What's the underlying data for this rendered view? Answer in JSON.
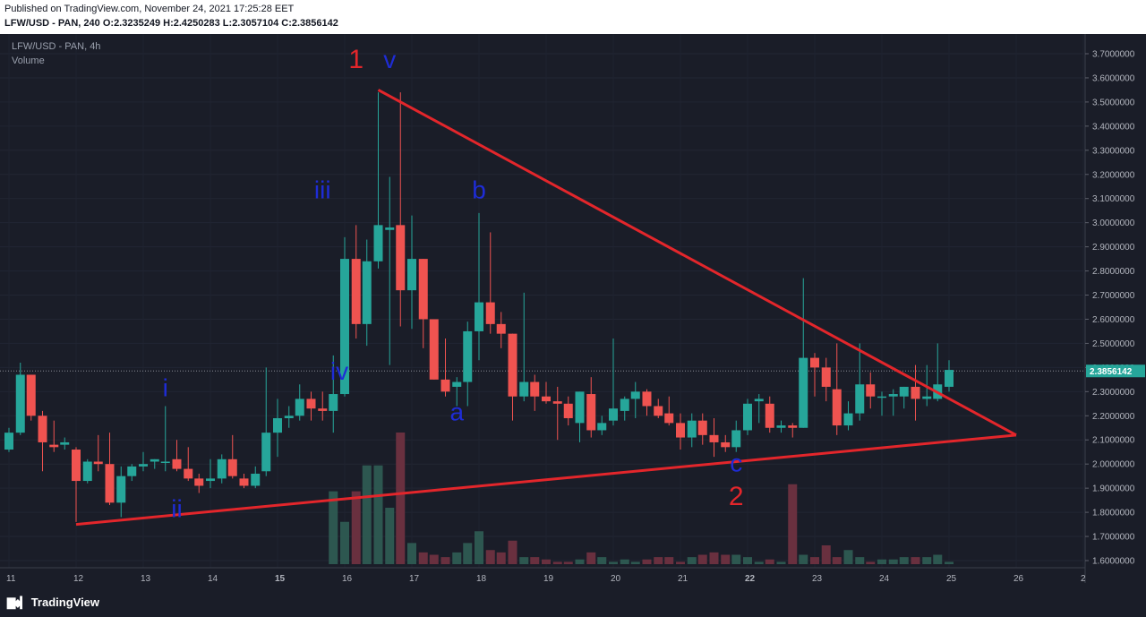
{
  "header": {
    "published": "Published on TradingView.com, November 24, 2021 17:25:28 EET",
    "symbol_line_prefix": "LFW/USD - PAN, 240",
    "o_label": "O:",
    "o_value": "2.3235249",
    "h_label": "H:",
    "h_value": "2.4250283",
    "l_label": "L:",
    "l_value": "2.3057104",
    "c_label": "C:",
    "c_value": "2.3856142"
  },
  "pane": {
    "symbol": "LFW/USD - PAN, 4h",
    "volume_label": "Volume"
  },
  "footer": {
    "brand": "TradingView",
    "logo_icon": "tradingview-logo-icon"
  },
  "colors": {
    "background": "#1a1d28",
    "up": "#26a69a",
    "down": "#ef5350",
    "trendline": "#e3262b",
    "wave_label": "#1e2cd6",
    "degree_label": "#e3262b",
    "axis_text": "#b2b5be",
    "price_badge": "#26a69a"
  },
  "chart_data": {
    "type": "candlestick",
    "title": "",
    "price_axis": {
      "ticks": [
        "3.7000000",
        "3.6000000",
        "3.5000000",
        "3.4000000",
        "3.3000000",
        "3.2000000",
        "3.1000000",
        "3.0000000",
        "2.9000000",
        "2.8000000",
        "2.7000000",
        "2.6000000",
        "2.5000000",
        "2.4000000",
        "2.3000000",
        "2.2000000",
        "2.1000000",
        "2.0000000",
        "1.9000000",
        "1.8000000",
        "1.7000000",
        "1.6000000"
      ],
      "range": [
        1.6,
        3.7
      ],
      "last_price": "2.3856142"
    },
    "time_axis": {
      "ticks": [
        "11",
        "12",
        "13",
        "14",
        "15",
        "16",
        "17",
        "18",
        "19",
        "20",
        "21",
        "22",
        "23",
        "24",
        "25",
        "26",
        "2"
      ],
      "bold": [
        "15",
        "22"
      ]
    },
    "candles": [
      {
        "x": 11.0,
        "o": 2.06,
        "h": 2.15,
        "l": 2.05,
        "c": 2.13
      },
      {
        "x": 11.17,
        "o": 2.13,
        "h": 2.42,
        "l": 2.12,
        "c": 2.37
      },
      {
        "x": 11.33,
        "o": 2.37,
        "h": 2.37,
        "l": 2.18,
        "c": 2.2
      },
      {
        "x": 11.5,
        "o": 2.2,
        "h": 2.22,
        "l": 1.97,
        "c": 2.09
      },
      {
        "x": 11.67,
        "o": 2.08,
        "h": 2.18,
        "l": 2.05,
        "c": 2.07
      },
      {
        "x": 11.83,
        "o": 2.08,
        "h": 2.11,
        "l": 2.06,
        "c": 2.09
      },
      {
        "x": 12.0,
        "o": 2.06,
        "h": 2.07,
        "l": 1.76,
        "c": 1.93
      },
      {
        "x": 12.17,
        "o": 1.93,
        "h": 2.02,
        "l": 1.92,
        "c": 2.01
      },
      {
        "x": 12.33,
        "o": 2.01,
        "h": 2.12,
        "l": 1.97,
        "c": 2.0
      },
      {
        "x": 12.5,
        "o": 2.0,
        "h": 2.13,
        "l": 1.83,
        "c": 1.84
      },
      {
        "x": 12.67,
        "o": 1.84,
        "h": 1.99,
        "l": 1.78,
        "c": 1.95
      },
      {
        "x": 12.83,
        "o": 1.95,
        "h": 2.0,
        "l": 1.93,
        "c": 1.99
      },
      {
        "x": 13.0,
        "o": 1.99,
        "h": 2.05,
        "l": 1.97,
        "c": 2.0
      },
      {
        "x": 13.17,
        "o": 2.01,
        "h": 2.02,
        "l": 1.98,
        "c": 2.02
      },
      {
        "x": 13.33,
        "o": 2.01,
        "h": 2.24,
        "l": 1.97,
        "c": 2.01
      },
      {
        "x": 13.5,
        "o": 2.02,
        "h": 2.1,
        "l": 1.97,
        "c": 1.98
      },
      {
        "x": 13.67,
        "o": 1.98,
        "h": 2.07,
        "l": 1.93,
        "c": 1.94
      },
      {
        "x": 13.83,
        "o": 1.94,
        "h": 1.96,
        "l": 1.88,
        "c": 1.91
      },
      {
        "x": 14.0,
        "o": 1.93,
        "h": 2.02,
        "l": 1.9,
        "c": 1.94
      },
      {
        "x": 14.17,
        "o": 1.94,
        "h": 2.04,
        "l": 1.92,
        "c": 2.02
      },
      {
        "x": 14.33,
        "o": 2.02,
        "h": 2.12,
        "l": 1.94,
        "c": 1.95
      },
      {
        "x": 14.5,
        "o": 1.94,
        "h": 1.96,
        "l": 1.9,
        "c": 1.91
      },
      {
        "x": 14.67,
        "o": 1.91,
        "h": 1.99,
        "l": 1.9,
        "c": 1.96
      },
      {
        "x": 14.83,
        "o": 1.97,
        "h": 2.4,
        "l": 1.95,
        "c": 2.13
      },
      {
        "x": 15.0,
        "o": 2.13,
        "h": 2.27,
        "l": 2.03,
        "c": 2.19
      },
      {
        "x": 15.17,
        "o": 2.19,
        "h": 2.24,
        "l": 2.15,
        "c": 2.2
      },
      {
        "x": 15.33,
        "o": 2.2,
        "h": 2.33,
        "l": 2.18,
        "c": 2.27
      },
      {
        "x": 15.5,
        "o": 2.27,
        "h": 2.3,
        "l": 2.18,
        "c": 2.23
      },
      {
        "x": 15.67,
        "o": 2.23,
        "h": 2.3,
        "l": 2.18,
        "c": 2.22
      },
      {
        "x": 15.83,
        "o": 2.22,
        "h": 2.45,
        "l": 2.13,
        "c": 2.29
      },
      {
        "x": 16.0,
        "o": 2.29,
        "h": 2.94,
        "l": 2.28,
        "c": 2.85
      },
      {
        "x": 16.17,
        "o": 2.85,
        "h": 2.99,
        "l": 2.52,
        "c": 2.58
      },
      {
        "x": 16.33,
        "o": 2.58,
        "h": 2.93,
        "l": 2.49,
        "c": 2.84
      },
      {
        "x": 16.5,
        "o": 2.84,
        "h": 3.54,
        "l": 2.81,
        "c": 2.99
      },
      {
        "x": 16.67,
        "o": 2.97,
        "h": 3.19,
        "l": 2.41,
        "c": 2.98
      },
      {
        "x": 16.83,
        "o": 2.99,
        "h": 3.54,
        "l": 2.57,
        "c": 2.72
      },
      {
        "x": 17.0,
        "o": 2.72,
        "h": 3.03,
        "l": 2.56,
        "c": 2.85
      },
      {
        "x": 17.17,
        "o": 2.85,
        "h": 2.85,
        "l": 2.48,
        "c": 2.6
      },
      {
        "x": 17.33,
        "o": 2.6,
        "h": 2.6,
        "l": 2.35,
        "c": 2.35
      },
      {
        "x": 17.5,
        "o": 2.35,
        "h": 2.52,
        "l": 2.28,
        "c": 2.3
      },
      {
        "x": 17.67,
        "o": 2.32,
        "h": 2.36,
        "l": 2.24,
        "c": 2.34
      },
      {
        "x": 17.83,
        "o": 2.34,
        "h": 2.59,
        "l": 2.24,
        "c": 2.55
      },
      {
        "x": 18.0,
        "o": 2.55,
        "h": 3.04,
        "l": 2.43,
        "c": 2.67
      },
      {
        "x": 18.17,
        "o": 2.67,
        "h": 2.96,
        "l": 2.54,
        "c": 2.58
      },
      {
        "x": 18.33,
        "o": 2.58,
        "h": 2.63,
        "l": 2.48,
        "c": 2.54
      },
      {
        "x": 18.5,
        "o": 2.54,
        "h": 2.54,
        "l": 2.18,
        "c": 2.28
      },
      {
        "x": 18.67,
        "o": 2.28,
        "h": 2.71,
        "l": 2.26,
        "c": 2.34
      },
      {
        "x": 18.83,
        "o": 2.34,
        "h": 2.37,
        "l": 2.22,
        "c": 2.28
      },
      {
        "x": 19.0,
        "o": 2.28,
        "h": 2.34,
        "l": 2.25,
        "c": 2.26
      },
      {
        "x": 19.17,
        "o": 2.26,
        "h": 2.32,
        "l": 2.1,
        "c": 2.25
      },
      {
        "x": 19.33,
        "o": 2.25,
        "h": 2.28,
        "l": 2.16,
        "c": 2.19
      },
      {
        "x": 19.5,
        "o": 2.17,
        "h": 2.3,
        "l": 2.09,
        "c": 2.3
      },
      {
        "x": 19.67,
        "o": 2.29,
        "h": 2.36,
        "l": 2.11,
        "c": 2.14
      },
      {
        "x": 19.83,
        "o": 2.14,
        "h": 2.2,
        "l": 2.12,
        "c": 2.17
      },
      {
        "x": 20.0,
        "o": 2.18,
        "h": 2.52,
        "l": 2.16,
        "c": 2.23
      },
      {
        "x": 20.17,
        "o": 2.22,
        "h": 2.28,
        "l": 2.18,
        "c": 2.27
      },
      {
        "x": 20.33,
        "o": 2.27,
        "h": 2.34,
        "l": 2.19,
        "c": 2.3
      },
      {
        "x": 20.5,
        "o": 2.3,
        "h": 2.31,
        "l": 2.2,
        "c": 2.24
      },
      {
        "x": 20.67,
        "o": 2.24,
        "h": 2.27,
        "l": 2.19,
        "c": 2.2
      },
      {
        "x": 20.83,
        "o": 2.21,
        "h": 2.28,
        "l": 2.16,
        "c": 2.17
      },
      {
        "x": 21.0,
        "o": 2.17,
        "h": 2.21,
        "l": 2.06,
        "c": 2.11
      },
      {
        "x": 21.17,
        "o": 2.11,
        "h": 2.21,
        "l": 2.07,
        "c": 2.18
      },
      {
        "x": 21.33,
        "o": 2.18,
        "h": 2.21,
        "l": 2.08,
        "c": 2.12
      },
      {
        "x": 21.5,
        "o": 2.12,
        "h": 2.19,
        "l": 2.03,
        "c": 2.09
      },
      {
        "x": 21.67,
        "o": 2.09,
        "h": 2.12,
        "l": 2.05,
        "c": 2.07
      },
      {
        "x": 21.83,
        "o": 2.07,
        "h": 2.18,
        "l": 2.05,
        "c": 2.14
      },
      {
        "x": 22.0,
        "o": 2.14,
        "h": 2.27,
        "l": 2.12,
        "c": 2.25
      },
      {
        "x": 22.17,
        "o": 2.26,
        "h": 2.29,
        "l": 2.17,
        "c": 2.27
      },
      {
        "x": 22.33,
        "o": 2.25,
        "h": 2.28,
        "l": 2.13,
        "c": 2.15
      },
      {
        "x": 22.5,
        "o": 2.15,
        "h": 2.18,
        "l": 2.13,
        "c": 2.16
      },
      {
        "x": 22.67,
        "o": 2.16,
        "h": 2.17,
        "l": 2.11,
        "c": 2.15
      },
      {
        "x": 22.83,
        "o": 2.15,
        "h": 2.77,
        "l": 2.15,
        "c": 2.44
      },
      {
        "x": 23.0,
        "o": 2.44,
        "h": 2.46,
        "l": 2.28,
        "c": 2.4
      },
      {
        "x": 23.17,
        "o": 2.4,
        "h": 2.44,
        "l": 2.26,
        "c": 2.32
      },
      {
        "x": 23.33,
        "o": 2.31,
        "h": 2.5,
        "l": 2.12,
        "c": 2.16
      },
      {
        "x": 23.5,
        "o": 2.16,
        "h": 2.26,
        "l": 2.14,
        "c": 2.21
      },
      {
        "x": 23.67,
        "o": 2.21,
        "h": 2.5,
        "l": 2.18,
        "c": 2.33
      },
      {
        "x": 23.83,
        "o": 2.33,
        "h": 2.38,
        "l": 2.23,
        "c": 2.28
      },
      {
        "x": 24.0,
        "o": 2.28,
        "h": 2.3,
        "l": 2.2,
        "c": 2.28
      },
      {
        "x": 24.17,
        "o": 2.28,
        "h": 2.31,
        "l": 2.2,
        "c": 2.29
      },
      {
        "x": 24.33,
        "o": 2.28,
        "h": 2.32,
        "l": 2.23,
        "c": 2.32
      },
      {
        "x": 24.5,
        "o": 2.32,
        "h": 2.41,
        "l": 2.18,
        "c": 2.27
      },
      {
        "x": 24.67,
        "o": 2.27,
        "h": 2.41,
        "l": 2.24,
        "c": 2.28
      },
      {
        "x": 24.83,
        "o": 2.27,
        "h": 2.5,
        "l": 2.26,
        "c": 2.33
      },
      {
        "x": 25.0,
        "o": 2.32,
        "h": 2.43,
        "l": 2.3,
        "c": 2.39
      }
    ],
    "volume_max": 5.6,
    "volumes": [
      0,
      0,
      0,
      0,
      0,
      0,
      0,
      0,
      0,
      0,
      0,
      0,
      0,
      0,
      0,
      0,
      0,
      0,
      0,
      0,
      0,
      0,
      0,
      0,
      0,
      0,
      0,
      0,
      0,
      3.1,
      1.8,
      3.1,
      4.2,
      4.2,
      2.4,
      5.6,
      0.9,
      0.5,
      0.4,
      0.3,
      0.5,
      0.9,
      1.4,
      0.6,
      0.5,
      1.0,
      0.3,
      0.3,
      0.2,
      0.1,
      0.1,
      0.2,
      0.5,
      0.3,
      0.1,
      0.2,
      0.1,
      0.2,
      0.3,
      0.3,
      0.1,
      0.3,
      0.4,
      0.5,
      0.4,
      0.4,
      0.3,
      0.1,
      0.2,
      0.1,
      3.4,
      0.4,
      0.3,
      0.8,
      0.3,
      0.6,
      0.3,
      0.1,
      0.2,
      0.2,
      0.3,
      0.3,
      0.3,
      0.4,
      0.1
    ],
    "trendlines": [
      {
        "from": {
          "x": 16.5,
          "y": 3.55
        },
        "to": {
          "x": 26.0,
          "y": 2.12
        }
      },
      {
        "from": {
          "x": 12.0,
          "y": 1.75
        },
        "to": {
          "x": 26.0,
          "y": 2.12
        }
      }
    ],
    "wave_labels": [
      {
        "text": "i",
        "x": 13.33,
        "y": 2.28
      },
      {
        "text": "ii",
        "x": 13.5,
        "y": 1.78
      },
      {
        "text": "iii",
        "x": 15.67,
        "y": 3.1
      },
      {
        "text": "iv",
        "x": 15.92,
        "y": 2.35
      },
      {
        "text": "v",
        "x": 16.67,
        "y": 3.64
      },
      {
        "text": "a",
        "x": 17.67,
        "y": 2.18
      },
      {
        "text": "b",
        "x": 18.0,
        "y": 3.1
      },
      {
        "text": "c",
        "x": 21.83,
        "y": 1.97
      }
    ],
    "degree_labels": [
      {
        "text": "1",
        "x": 16.17,
        "y": 3.64
      },
      {
        "text": "2",
        "x": 21.83,
        "y": 1.83
      }
    ]
  }
}
